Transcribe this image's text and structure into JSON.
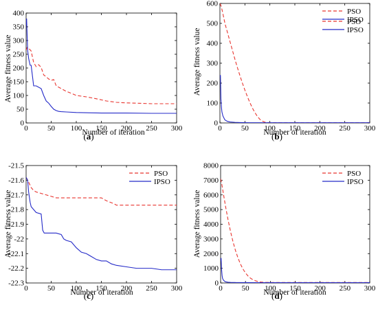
{
  "colors": {
    "PSO": "#e8342e",
    "IPSO": "#2329c8",
    "axis": "#000000"
  },
  "chart_data": [
    {
      "id": "a",
      "type": "line",
      "caption": "(a)",
      "xlabel": "Number of iteration",
      "ylabel": "Average fitness value",
      "xlim": [
        0,
        300
      ],
      "ylim": [
        0,
        400
      ],
      "xticks": [
        0,
        50,
        100,
        150,
        200,
        250,
        300
      ],
      "yticks": [
        0,
        50,
        100,
        150,
        200,
        250,
        300,
        350,
        400
      ],
      "grid": false,
      "legend": "top-right",
      "series": [
        {
          "name": "PSO",
          "style": "dashed",
          "x": [
            0,
            2,
            5,
            10,
            15,
            20,
            25,
            30,
            35,
            40,
            45,
            50,
            55,
            60,
            70,
            80,
            90,
            100,
            120,
            140,
            160,
            180,
            200,
            220,
            250,
            270,
            300
          ],
          "y": [
            265,
            275,
            272,
            262,
            220,
            205,
            212,
            202,
            175,
            168,
            160,
            155,
            158,
            135,
            125,
            115,
            108,
            100,
            95,
            88,
            80,
            75,
            73,
            72,
            70,
            70,
            70
          ]
        },
        {
          "name": "IPSO",
          "style": "solid",
          "x": [
            0,
            1,
            2,
            3,
            5,
            8,
            10,
            12,
            15,
            20,
            30,
            35,
            40,
            45,
            50,
            55,
            60,
            65,
            70,
            80,
            100,
            150,
            200,
            250,
            300
          ],
          "y": [
            355,
            380,
            320,
            265,
            235,
            210,
            210,
            180,
            135,
            135,
            125,
            100,
            80,
            72,
            60,
            50,
            45,
            42,
            41,
            40,
            38,
            36,
            36,
            35,
            35
          ]
        }
      ]
    },
    {
      "id": "b",
      "type": "line",
      "caption": "(b)",
      "xlabel": "Number of iteration",
      "ylabel": "Average fitness value",
      "xlim": [
        0,
        300
      ],
      "ylim": [
        0,
        600
      ],
      "xticks": [
        0,
        50,
        100,
        150,
        200,
        250,
        300
      ],
      "yticks": [
        0,
        100,
        200,
        300,
        400,
        500,
        600
      ],
      "grid": false,
      "legend": "top-right",
      "series": [
        {
          "name": "PSO",
          "style": "dashed",
          "x": [
            0,
            2,
            5,
            10,
            15,
            20,
            25,
            30,
            35,
            40,
            45,
            50,
            55,
            60,
            65,
            70,
            75,
            80,
            85,
            90,
            95,
            100,
            150,
            200,
            250,
            300
          ],
          "y": [
            600,
            590,
            560,
            500,
            455,
            410,
            365,
            320,
            278,
            238,
            200,
            165,
            132,
            102,
            75,
            52,
            33,
            18,
            9,
            4,
            2,
            1,
            1,
            1,
            1,
            1
          ]
        },
        {
          "name": "IPSO",
          "style": "solid",
          "x": [
            0,
            1,
            2,
            3,
            4,
            6,
            8,
            10,
            15,
            20,
            30,
            40,
            60,
            100,
            200,
            300
          ],
          "y": [
            230,
            240,
            120,
            80,
            55,
            35,
            25,
            15,
            8,
            5,
            3,
            2,
            1,
            1,
            1,
            1
          ]
        }
      ]
    },
    {
      "id": "c",
      "type": "line",
      "caption": "(c)",
      "xlabel": "Number of iteration",
      "ylabel": "Average fitness value",
      "xlim": [
        0,
        300
      ],
      "ylim": [
        -22.3,
        -21.5
      ],
      "xticks": [
        0,
        50,
        100,
        150,
        200,
        250,
        300
      ],
      "yticks": [
        -21.5,
        -21.6,
        -21.7,
        -21.8,
        -21.9,
        -22,
        -22.1,
        -22.2,
        -22.3
      ],
      "ytick_labels": [
        "-21.5",
        "-21.6",
        "-21.7",
        "-21.8",
        "-21.9",
        "-22",
        "-22.1",
        "-22.2",
        "-22.3"
      ],
      "grid": false,
      "legend": "top-right",
      "series": [
        {
          "name": "PSO",
          "style": "dashed",
          "x": [
            0,
            3,
            6,
            10,
            15,
            20,
            30,
            40,
            50,
            60,
            80,
            100,
            150,
            160,
            175,
            180,
            200,
            250,
            300
          ],
          "y": [
            -21.58,
            -21.6,
            -21.62,
            -21.65,
            -21.67,
            -21.68,
            -21.69,
            -21.7,
            -21.71,
            -21.72,
            -21.72,
            -21.72,
            -21.72,
            -21.74,
            -21.76,
            -21.77,
            -21.77,
            -21.77,
            -21.77
          ]
        },
        {
          "name": "IPSO",
          "style": "solid",
          "x": [
            0,
            3,
            5,
            8,
            10,
            15,
            20,
            30,
            33,
            36,
            40,
            50,
            60,
            70,
            75,
            80,
            90,
            100,
            110,
            120,
            130,
            140,
            150,
            160,
            170,
            180,
            200,
            220,
            250,
            270,
            300
          ],
          "y": [
            -21.58,
            -21.6,
            -21.68,
            -21.75,
            -21.78,
            -21.8,
            -21.82,
            -21.83,
            -21.94,
            -21.96,
            -21.96,
            -21.96,
            -21.96,
            -21.97,
            -22.0,
            -22.01,
            -22.02,
            -22.06,
            -22.09,
            -22.1,
            -22.12,
            -22.14,
            -22.15,
            -22.15,
            -22.17,
            -22.18,
            -22.19,
            -22.2,
            -22.2,
            -22.21,
            -22.21
          ]
        }
      ]
    },
    {
      "id": "d",
      "type": "line",
      "caption": "(d)",
      "xlabel": "Number of iteration",
      "ylabel": "Average fitness value",
      "xlim": [
        0,
        300
      ],
      "ylim": [
        0,
        8000
      ],
      "xticks": [
        0,
        50,
        100,
        150,
        200,
        250,
        300
      ],
      "yticks": [
        0,
        1000,
        2000,
        3000,
        4000,
        5000,
        6000,
        7000,
        8000
      ],
      "grid": false,
      "legend": "top-right",
      "series": [
        {
          "name": "PSO",
          "style": "dashed",
          "x": [
            0,
            2,
            5,
            10,
            15,
            20,
            25,
            30,
            35,
            40,
            45,
            50,
            55,
            60,
            65,
            70,
            75,
            80,
            85,
            90,
            100,
            150,
            200,
            250,
            300
          ],
          "y": [
            7100,
            6800,
            6200,
            5200,
            4300,
            3500,
            2800,
            2200,
            1700,
            1280,
            950,
            680,
            480,
            330,
            220,
            150,
            100,
            70,
            50,
            40,
            35,
            30,
            30,
            30,
            30
          ]
        },
        {
          "name": "IPSO",
          "style": "solid",
          "x": [
            0,
            1,
            2,
            3,
            4,
            6,
            8,
            10,
            15,
            20,
            30,
            50,
            100,
            200,
            300
          ],
          "y": [
            1500,
            1700,
            900,
            500,
            300,
            180,
            120,
            80,
            50,
            40,
            30,
            25,
            20,
            20,
            20
          ]
        }
      ]
    }
  ]
}
